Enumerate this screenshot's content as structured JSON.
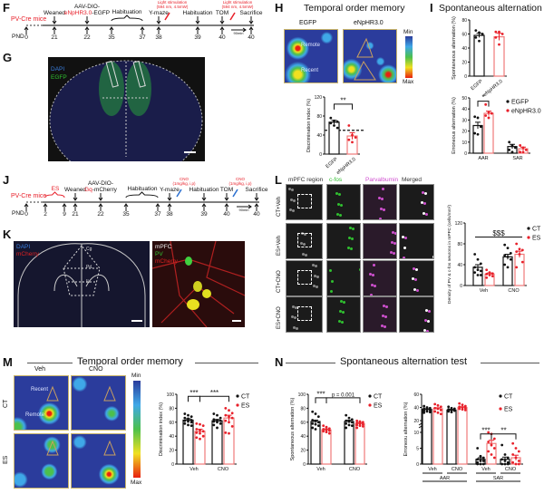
{
  "panels": {
    "F": "F",
    "G": "G",
    "H": "H",
    "I": "I",
    "J": "J",
    "K": "K",
    "L": "L",
    "M": "M",
    "N": "N"
  },
  "titles": {
    "H": "Temporal order memory",
    "I": "Spontaneous alternation test",
    "M": "Temporal order memory",
    "N": "Spontaneous alternation test"
  },
  "timeline_F": {
    "strain": "PV-Cre mice",
    "pnd_label": "PND",
    "ticks": [
      "0",
      "21",
      "22",
      "35",
      "37",
      "38",
      "39",
      "40",
      "40"
    ],
    "events": [
      {
        "lines": [
          [
            {
              "t": "Weaned"
            }
          ]
        ]
      },
      {
        "lines": [
          [
            {
              "t": "AAV-DIO-"
            }
          ],
          [
            {
              "t": "eNpHR3.0",
              "red": true
            },
            {
              "t": "-EGFP"
            }
          ]
        ]
      },
      {
        "lines": [
          [
            {
              "t": "Habituation"
            }
          ]
        ],
        "brace": true
      },
      {
        "lines": [
          [
            {
              "t": "Y-maze"
            }
          ]
        ]
      },
      {
        "lines": [
          [
            {
              "t": "Habituation"
            }
          ]
        ]
      },
      {
        "lines": [
          [
            {
              "t": "TOM"
            }
          ]
        ]
      },
      {
        "lines": [
          [
            {
              "t": "Sacrifice"
            }
          ]
        ]
      }
    ],
    "stimulation": [
      "Light stimulation",
      "(594 nm, 4.5mW)"
    ],
    "duration": "90min"
  },
  "timeline_J": {
    "strain": "PV-Cre mice",
    "pnd_label": "PND",
    "ticks": [
      "0",
      "2",
      "9",
      "21",
      "22",
      "35",
      "37",
      "38",
      "39",
      "40",
      "40"
    ],
    "events": [
      {
        "lines": [
          [
            {
              "t": "ES",
              "red": true
            }
          ]
        ],
        "brace": true
      },
      {
        "lines": [
          [
            {
              "t": "Weaned"
            }
          ]
        ]
      },
      {
        "lines": [
          [
            {
              "t": "AAV-DIO-"
            }
          ],
          [
            {
              "t": "Gq",
              "red": true
            },
            {
              "t": "-mCherry"
            }
          ]
        ]
      },
      {
        "lines": [
          [
            {
              "t": "Habituation"
            }
          ]
        ],
        "brace": true
      },
      {
        "lines": [
          [
            {
              "t": "Y-maze"
            }
          ]
        ]
      },
      {
        "lines": [
          [
            {
              "t": "Habituation"
            }
          ]
        ]
      },
      {
        "lines": [
          [
            {
              "t": "TOM"
            }
          ]
        ]
      },
      {
        "lines": [
          [
            {
              "t": "Sacrifice"
            }
          ]
        ]
      }
    ],
    "injection": [
      "CNO",
      "(1mg/kg, i.p)"
    ],
    "duration": "90min"
  },
  "G": {
    "dapi": "DAPI",
    "egfp": "EGFP"
  },
  "K": {
    "dapi": "DAPI",
    "mcherry": "mCherry",
    "region": "mPFC",
    "pv": "PV",
    "mcherry2": "mCherry",
    "regions": [
      "Cg",
      "PrL",
      "IL"
    ]
  },
  "H_maps": {
    "groups": [
      "EGFP",
      "eNpHR3.0"
    ],
    "remote": "Remote",
    "recent": "Recent",
    "min": "Min",
    "max": "Max"
  },
  "M_maps": {
    "cols": [
      "Veh",
      "CNO"
    ],
    "rows": [
      "CT",
      "ES"
    ],
    "recent": "Recent",
    "remote": "Remote",
    "min": "Min",
    "max": "Max"
  },
  "L_grid": {
    "cols": [
      "mPFC region",
      "c-fos",
      "Parvalbumin",
      "Merged"
    ],
    "rows": [
      "CT+Veh",
      "ES+Veh",
      "CT+CNO",
      "ES+CNO"
    ]
  },
  "colors": {
    "ct": "#111111",
    "es": "#e8202a",
    "es_bar": "#f07a7a",
    "dapi": "#3a7fe0",
    "egfp": "#30c030",
    "mcherry": "#e02020",
    "cfos": "#30c030",
    "pv": "#d050d0"
  },
  "chart_data": [
    {
      "id": "H",
      "type": "bar",
      "ylabel": "Discrimination index (%)",
      "ylim": [
        0,
        120
      ],
      "yticks": [
        0,
        40,
        80,
        120
      ],
      "rotated_labels": true,
      "reference_line": 50,
      "groups": [
        {
          "label": "EGFP",
          "bars": [
            {
              "series": "EGFP",
              "mean": 67,
              "sem": 4,
              "points": [
                76,
                70,
                68,
                65,
                60,
                55
              ]
            }
          ]
        },
        {
          "label": "eNpHR3.0",
          "bars": [
            {
              "series": "eNpHR3.0",
              "mean": 38,
              "sem": 7,
              "points": [
                60,
                40,
                35,
                30,
                25
              ]
            }
          ]
        }
      ],
      "significance": [
        {
          "bars": [
            0,
            1
          ],
          "label": "**"
        }
      ]
    },
    {
      "id": "Itop",
      "type": "bar",
      "ylabel": "Spontaneous alternation (%)",
      "ylim": [
        0,
        80
      ],
      "yticks": [
        0,
        20,
        40,
        60,
        80
      ],
      "rotated_labels": true,
      "groups": [
        {
          "label": "EGFP",
          "bars": [
            {
              "series": "EGFP",
              "mean": 58,
              "sem": 3,
              "points": [
                65,
                62,
                60,
                55,
                50
              ]
            }
          ]
        },
        {
          "label": "eNpHR3.0",
          "bars": [
            {
              "series": "eNpHR3.0",
              "mean": 56,
              "sem": 5,
              "points": [
                63,
                63,
                60,
                55,
                45
              ]
            }
          ]
        }
      ],
      "significance": []
    },
    {
      "id": "Ibot",
      "type": "bar",
      "ylabel": "Erroneous alternation (%)",
      "ylim": [
        0,
        50
      ],
      "yticks": [
        0,
        10,
        20,
        30,
        40,
        50
      ],
      "legend": [
        "EGFP",
        "eNpHR3.0"
      ],
      "groups": [
        {
          "label": "AAR",
          "bars": [
            {
              "series": "EGFP",
              "mean": 25,
              "sem": 3,
              "points": [
                33,
                32,
                24,
                18,
                17
              ]
            },
            {
              "series": "eNpHR3.0",
              "mean": 36,
              "sem": 2,
              "points": [
                44,
                37,
                36,
                34,
                32
              ]
            }
          ]
        },
        {
          "label": "SAR",
          "bars": [
            {
              "series": "EGFP",
              "mean": 6,
              "sem": 2,
              "points": [
                10,
                7,
                5,
                3,
                1
              ]
            },
            {
              "series": "eNpHR3.0",
              "mean": 4,
              "sem": 1.5,
              "points": [
                7,
                5,
                3,
                1,
                1
              ]
            }
          ]
        }
      ],
      "significance": [
        {
          "bars": [
            0,
            1
          ],
          "label": "*"
        }
      ]
    },
    {
      "id": "L",
      "type": "bar",
      "ylabel": "Density of PV & c-fos neurons in mPFC (cells/mm²)",
      "ylim": [
        0,
        120
      ],
      "yticks": [
        0,
        40,
        80,
        120
      ],
      "legend": [
        "CT",
        "ES"
      ],
      "groups": [
        {
          "label": "Veh",
          "bars": [
            {
              "series": "CT",
              "mean": 35,
              "sem": 5,
              "points": [
                60,
                50,
                42,
                35,
                30,
                28,
                25,
                20,
                20
              ]
            },
            {
              "series": "ES",
              "mean": 22,
              "sem": 2,
              "points": [
                30,
                25,
                23,
                22,
                20,
                18,
                15
              ]
            }
          ]
        },
        {
          "label": "CNO",
          "bars": [
            {
              "series": "CT",
              "mean": 55,
              "sem": 5,
              "points": [
                78,
                72,
                62,
                58,
                55,
                50,
                40,
                35
              ]
            },
            {
              "series": "ES",
              "mean": 60,
              "sem": 6,
              "points": [
                80,
                70,
                68,
                65,
                60,
                45,
                35
              ]
            }
          ]
        }
      ],
      "significance": [
        {
          "bars": [
            0,
            3
          ],
          "label": "$$$",
          "line_only": true
        }
      ]
    },
    {
      "id": "M",
      "type": "bar",
      "ylabel": "Discrimination index (%)",
      "ylim": [
        0,
        100
      ],
      "yticks": [
        0,
        20,
        40,
        60,
        80,
        100
      ],
      "legend": [
        "CT",
        "ES"
      ],
      "groups": [
        {
          "label": "Veh",
          "bars": [
            {
              "series": "CT",
              "mean": 63,
              "sem": 2,
              "points": [
                72,
                70,
                68,
                66,
                65,
                63,
                62,
                61,
                60,
                58,
                56,
                55
              ]
            },
            {
              "series": "ES",
              "mean": 47,
              "sem": 3,
              "points": [
                58,
                57,
                55,
                50,
                48,
                47,
                45,
                44,
                40,
                38,
                36
              ]
            }
          ]
        },
        {
          "label": "CNO",
          "bars": [
            {
              "series": "CT",
              "mean": 62,
              "sem": 2,
              "points": [
                72,
                70,
                66,
                64,
                63,
                62,
                61,
                60,
                58,
                56,
                52
              ]
            },
            {
              "series": "ES",
              "mean": 66,
              "sem": 4,
              "points": [
                80,
                77,
                73,
                70,
                68,
                66,
                62,
                60,
                54,
                45,
                44
              ]
            }
          ]
        }
      ],
      "significance": [
        {
          "bars": [
            0,
            1
          ],
          "label": "***"
        },
        {
          "bars": [
            1,
            3
          ],
          "label": "***"
        }
      ]
    },
    {
      "id": "N1",
      "type": "bar",
      "ylabel": "Spontaneous alternation (%)",
      "ylim": [
        0,
        100
      ],
      "yticks": [
        0,
        20,
        40,
        60,
        80,
        100
      ],
      "legend": [
        "CT",
        "ES"
      ],
      "groups": [
        {
          "label": "Veh",
          "bars": [
            {
              "series": "CT",
              "mean": 61,
              "sem": 2,
              "points": [
                75,
                72,
                68,
                63,
                62,
                60,
                58,
                57,
                55,
                52,
                50
              ]
            },
            {
              "series": "ES",
              "mean": 49,
              "sem": 1.5,
              "points": [
                55,
                53,
                51,
                50,
                49,
                48,
                47,
                46,
                44
              ]
            }
          ]
        },
        {
          "label": "CNO",
          "bars": [
            {
              "series": "CT",
              "mean": 61,
              "sem": 2,
              "points": [
                70,
                66,
                64,
                62,
                61,
                60,
                58,
                56,
                55,
                52
              ]
            },
            {
              "series": "ES",
              "mean": 58,
              "sem": 1.5,
              "points": [
                62,
                61,
                60,
                59,
                58,
                57,
                56,
                55,
                54,
                52
              ]
            }
          ]
        }
      ],
      "significance": [
        {
          "bars": [
            0,
            1
          ],
          "label": "***"
        },
        {
          "bars": [
            1,
            3
          ],
          "label": "p = 0.001"
        }
      ]
    },
    {
      "id": "N2",
      "type": "bar",
      "ylabel": "Erroneou alternation (%)",
      "ylim": [
        0,
        60
      ],
      "axis_break": [
        10,
        20
      ],
      "yticks": [
        0,
        5,
        10,
        20,
        40,
        60
      ],
      "legend": [
        "CT",
        "ES"
      ],
      "groups": [
        {
          "label": "Veh",
          "super": "AAR",
          "bars": [
            {
              "series": "CT",
              "mean": 37,
              "sem": 1,
              "points": [
                42,
                40,
                39,
                38,
                37,
                36,
                35,
                34,
                33,
                32
              ]
            },
            {
              "series": "ES",
              "mean": 38,
              "sem": 1.5,
              "points": [
                45,
                43,
                41,
                39,
                38,
                36,
                34,
                32,
                30
              ]
            }
          ]
        },
        {
          "label": "CNO",
          "super": "AAR",
          "bars": [
            {
              "series": "CT",
              "mean": 36,
              "sem": 1,
              "points": [
                41,
                39,
                38,
                37,
                36,
                35,
                34,
                33
              ]
            },
            {
              "series": "ES",
              "mean": 40,
              "sem": 1,
              "points": [
                46,
                44,
                42,
                41,
                40,
                39,
                38,
                37,
                36
              ]
            }
          ]
        },
        {
          "label": "Veh",
          "super": "SAR",
          "bars": [
            {
              "series": "CT",
              "mean": 1.5,
              "sem": 0.5,
              "points": [
                5,
                2.5,
                2,
                1.5,
                1,
                1,
                0.5,
                0,
                0,
                0
              ]
            },
            {
              "series": "ES",
              "mean": 6.5,
              "sem": 1,
              "points": [
                10,
                9.5,
                8,
                7,
                6,
                5,
                4,
                3,
                2
              ]
            }
          ]
        },
        {
          "label": "CNO",
          "super": "SAR",
          "bars": [
            {
              "series": "CT",
              "mean": 1.5,
              "sem": 0.7,
              "points": [
                6,
                3,
                2,
                1.5,
                1,
                0.5,
                0,
                0,
                0
              ]
            },
            {
              "series": "ES",
              "mean": 2,
              "sem": 0.8,
              "points": [
                6.5,
                5,
                4,
                3,
                2,
                1,
                0.5,
                0,
                0
              ]
            }
          ]
        }
      ],
      "supergroups": [
        "AAR",
        "SAR"
      ],
      "significance": [
        {
          "bars": [
            4,
            5
          ],
          "label": "***"
        },
        {
          "bars": [
            5,
            7
          ],
          "label": "**"
        }
      ]
    }
  ]
}
